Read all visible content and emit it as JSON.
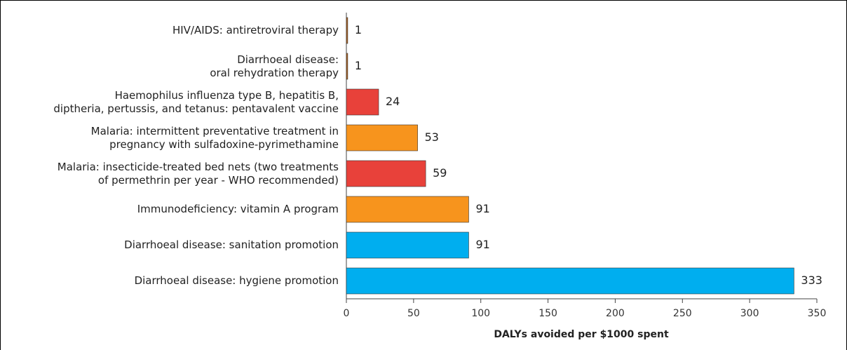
{
  "chart_data": {
    "type": "bar",
    "orientation": "horizontal",
    "categories": [
      "HIV/AIDS: antiretroviral therapy",
      "Diarrhoeal disease:\noral rehydration therapy",
      "Haemophilus influenza type B, hepatitis B,\ndiptheria, pertussis, and tetanus: pentavalent vaccine",
      "Malaria: intermittent preventative treatment in\npregnancy with sulfadoxine-pyrimethamine",
      "Malaria: insecticide-treated bed nets (two treatments\nof permethrin per year - WHO recommended)",
      "Immunodeficiency: vitamin A program",
      "Diarrhoeal disease: sanitation promotion",
      "Diarrhoeal disease: hygiene promotion"
    ],
    "values": [
      1,
      1,
      24,
      53,
      59,
      91,
      91,
      333
    ],
    "colors": [
      "#b5651d",
      "#b5651d",
      "#e8413a",
      "#f7941d",
      "#e8413a",
      "#f7941d",
      "#00aeef",
      "#00aeef"
    ],
    "xlabel": "DALYs avoided per $1000 spent",
    "xlim": [
      0,
      350
    ],
    "xticks": [
      0,
      50,
      100,
      150,
      200,
      250,
      300,
      350
    ]
  }
}
